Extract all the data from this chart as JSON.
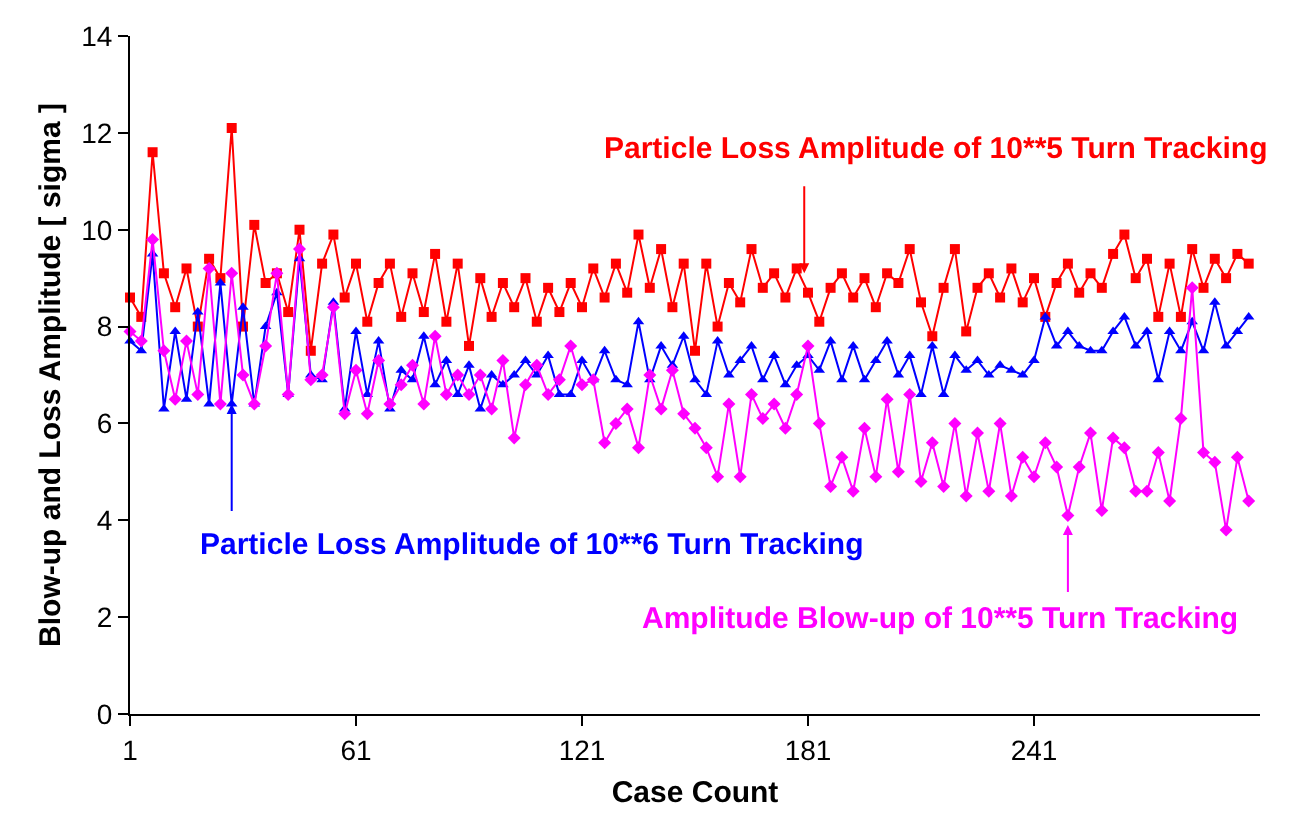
{
  "chart_data": {
    "type": "line",
    "xlabel": "Case Count",
    "ylabel": "Blow-up and Loss Amplitude [ sigma ]",
    "x": [
      1,
      4,
      7,
      10,
      13,
      16,
      19,
      22,
      25,
      28,
      31,
      34,
      37,
      40,
      43,
      46,
      49,
      52,
      55,
      58,
      61,
      64,
      67,
      70,
      73,
      76,
      79,
      82,
      85,
      88,
      91,
      94,
      97,
      100,
      103,
      106,
      109,
      112,
      115,
      118,
      121,
      124,
      127,
      130,
      133,
      136,
      139,
      142,
      145,
      148,
      151,
      154,
      157,
      160,
      163,
      166,
      169,
      172,
      175,
      178,
      181,
      184,
      187,
      190,
      193,
      196,
      199,
      202,
      205,
      208,
      211,
      214,
      217,
      220,
      223,
      226,
      229,
      232,
      235,
      238,
      241,
      244,
      247,
      250,
      253,
      256,
      259,
      262,
      265,
      268,
      271,
      274,
      277,
      280,
      283,
      286,
      289,
      292,
      295,
      298
    ],
    "series": [
      {
        "color": "#ff0000",
        "marker": "square",
        "values": [
          8.6,
          8.2,
          11.6,
          9.1,
          8.4,
          9.2,
          8.0,
          9.4,
          9.0,
          12.1,
          8.0,
          10.1,
          8.9,
          9.1,
          8.3,
          10.0,
          7.5,
          9.3,
          9.9,
          8.6,
          9.3,
          8.1,
          8.9,
          9.3,
          8.2,
          9.1,
          8.3,
          9.5,
          8.1,
          9.3,
          7.6,
          9.0,
          8.2,
          8.9,
          8.4,
          9.0,
          8.1,
          8.8,
          8.3,
          8.9,
          8.4,
          9.2,
          8.6,
          9.3,
          8.7,
          9.9,
          8.8,
          9.6,
          8.4,
          9.3,
          7.5,
          9.3,
          8.0,
          8.9,
          8.5,
          9.6,
          8.8,
          9.1,
          8.6,
          9.2,
          8.7,
          8.1,
          8.8,
          9.1,
          8.6,
          9.0,
          8.4,
          9.1,
          8.9,
          9.6,
          8.5,
          7.8,
          8.8,
          9.6,
          7.9,
          8.8,
          9.1,
          8.6,
          9.2,
          8.5,
          9.0,
          8.2,
          8.9,
          9.3,
          8.7,
          9.1,
          8.8,
          9.5,
          9.9,
          9.0,
          9.4,
          8.2,
          9.3,
          8.2,
          9.6,
          8.8,
          9.4,
          9.0,
          9.5,
          9.3
        ]
      },
      {
        "color": "#0000ff",
        "marker": "triangle",
        "values": [
          7.7,
          7.5,
          9.5,
          6.3,
          7.9,
          6.5,
          8.3,
          6.4,
          8.9,
          6.4,
          8.4,
          6.4,
          8.0,
          8.7,
          6.6,
          9.4,
          7.0,
          6.9,
          8.5,
          6.3,
          7.9,
          6.6,
          7.7,
          6.3,
          7.1,
          6.9,
          7.8,
          6.8,
          7.3,
          6.6,
          7.2,
          6.3,
          7.0,
          6.8,
          7.0,
          7.3,
          7.0,
          7.4,
          6.6,
          6.6,
          7.3,
          6.9,
          7.5,
          6.9,
          6.8,
          8.1,
          6.9,
          7.6,
          7.2,
          7.8,
          6.9,
          6.6,
          7.7,
          7.0,
          7.3,
          7.6,
          6.9,
          7.4,
          6.8,
          7.2,
          7.4,
          7.1,
          7.7,
          6.9,
          7.6,
          6.9,
          7.3,
          7.7,
          7.0,
          7.4,
          6.6,
          7.6,
          6.6,
          7.4,
          7.1,
          7.3,
          7.0,
          7.2,
          7.1,
          7.0,
          7.3,
          8.2,
          7.6,
          7.9,
          7.6,
          7.5,
          7.5,
          7.9,
          8.2,
          7.6,
          7.9,
          6.9,
          7.9,
          7.5,
          8.1,
          7.5,
          8.5,
          7.6,
          7.9,
          8.2
        ]
      },
      {
        "color": "#ff00ff",
        "marker": "diamond",
        "values": [
          7.9,
          7.7,
          9.8,
          7.5,
          6.5,
          7.7,
          6.6,
          9.2,
          6.4,
          9.1,
          7.0,
          6.4,
          7.6,
          9.1,
          6.6,
          9.6,
          6.9,
          7.0,
          8.4,
          6.2,
          7.1,
          6.2,
          7.3,
          6.4,
          6.8,
          7.2,
          6.4,
          7.8,
          6.6,
          7.0,
          6.6,
          7.0,
          6.3,
          7.3,
          5.7,
          6.8,
          7.2,
          6.6,
          6.9,
          7.6,
          6.8,
          6.9,
          5.6,
          6.0,
          6.3,
          5.5,
          7.0,
          6.3,
          7.1,
          6.2,
          5.9,
          5.5,
          4.9,
          6.4,
          4.9,
          6.6,
          6.1,
          6.4,
          5.9,
          6.6,
          7.6,
          6.0,
          4.7,
          5.3,
          4.6,
          5.9,
          4.9,
          6.5,
          5.0,
          6.6,
          4.8,
          5.6,
          4.7,
          6.0,
          4.5,
          5.8,
          4.6,
          6.0,
          4.5,
          5.3,
          4.9,
          5.6,
          5.1,
          4.1,
          5.1,
          5.8,
          4.2,
          5.7,
          5.5,
          4.6,
          4.6,
          5.4,
          4.4,
          6.1,
          8.8,
          5.4,
          5.2,
          3.8,
          5.3,
          4.4
        ]
      }
    ],
    "annotations": [
      {
        "text": "Particle Loss Amplitude of 10**5 Turn Tracking",
        "x": 180,
        "y": 9.1
      },
      {
        "text": "Particle Loss Amplitude of 10**6 Turn Tracking",
        "x": 28,
        "y": 6.4
      },
      {
        "text": "Amplitude Blow-up of 10**5 Turn Tracking",
        "x": 250,
        "y": 3.9
      }
    ],
    "xlim": [
      1,
      301
    ],
    "xticks": [
      1,
      61,
      121,
      181,
      241
    ],
    "ylim": [
      0,
      14
    ],
    "yticks": [
      0,
      2,
      4,
      6,
      8,
      10,
      12,
      14
    ],
    "grid": false,
    "line_style": "solid"
  }
}
